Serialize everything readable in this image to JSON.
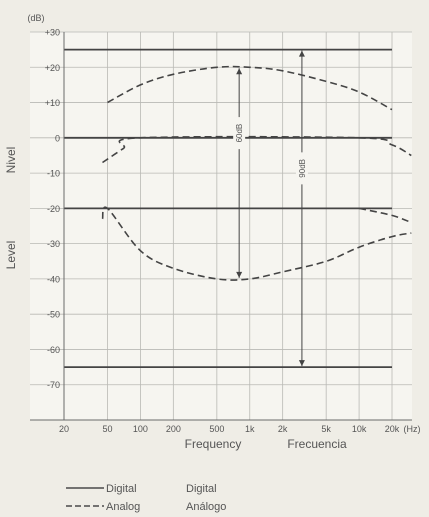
{
  "chart_data": {
    "type": "line",
    "title": "",
    "y_unit_label": "(dB)",
    "ylabels": [
      "Nivel",
      "Level"
    ],
    "xlabels": [
      "Frequency",
      "Frecuencia"
    ],
    "ylim": [
      -80,
      30
    ],
    "yticks": [
      30,
      20,
      10,
      0,
      -10,
      -20,
      -30,
      -40,
      -50,
      -60,
      -70
    ],
    "ytick_labels": [
      "+30",
      "+20",
      "+10",
      "0",
      "-10",
      "-20",
      "-30",
      "-40",
      "-50",
      "-60",
      "-70"
    ],
    "xticks_hz": [
      20,
      50,
      100,
      200,
      500,
      1000,
      2000,
      5000,
      10000,
      20000
    ],
    "xtick_labels": [
      "20",
      "50",
      "100",
      "200",
      "500",
      "1k",
      "2k",
      "5k",
      "10k",
      "20k"
    ],
    "x_unit_label": "(Hz)",
    "xlim_hz": [
      20,
      20000
    ],
    "x_scale": "log",
    "grid": true,
    "series": [
      {
        "name": "Digital",
        "style": "solid",
        "x": [
          20,
          20000
        ],
        "y": [
          25,
          25
        ]
      },
      {
        "name": "Digital",
        "style": "solid",
        "x": [
          20,
          20000
        ],
        "y": [
          0,
          0
        ]
      },
      {
        "name": "Digital",
        "style": "solid",
        "x": [
          20,
          20000
        ],
        "y": [
          -20,
          -20
        ]
      },
      {
        "name": "Digital",
        "style": "solid",
        "x": [
          20,
          20000
        ],
        "y": [
          -65,
          -65
        ]
      },
      {
        "name": "Analog",
        "style": "dashed",
        "x": [
          50,
          100,
          200,
          500,
          1000,
          2000,
          5000,
          10000,
          20000
        ],
        "y": [
          10,
          15,
          18,
          20,
          20,
          19,
          16,
          13,
          8
        ]
      },
      {
        "name": "Analog",
        "style": "dashed",
        "x": [
          45,
          70,
          100,
          10000,
          20000,
          30000
        ],
        "y": [
          -7,
          -3,
          0,
          0,
          -2,
          -5
        ]
      },
      {
        "name": "Analog",
        "style": "dashed",
        "x": [
          45,
          50,
          100,
          200,
          500,
          1000,
          2000,
          5000,
          10000,
          20000,
          30000
        ],
        "y": [
          -23,
          -20,
          -32,
          -37,
          -40,
          -40,
          -38,
          -35,
          -31,
          -28,
          -27
        ]
      },
      {
        "name": "Analog",
        "style": "dashed",
        "x": [
          10000,
          20000,
          30000
        ],
        "y": [
          -20,
          -22,
          -24
        ]
      }
    ],
    "annotations": [
      {
        "label": "60dB",
        "x": 800,
        "from": 20,
        "to": -40
      },
      {
        "label": "90dB",
        "x": 3000,
        "from": 25,
        "to": -65
      }
    ],
    "legend": {
      "placement": "bottom-left",
      "items": [
        {
          "style": "solid",
          "en": "Digital",
          "es": "Digital"
        },
        {
          "style": "dashed",
          "en": "Analog",
          "es": "Análogo"
        }
      ]
    }
  }
}
